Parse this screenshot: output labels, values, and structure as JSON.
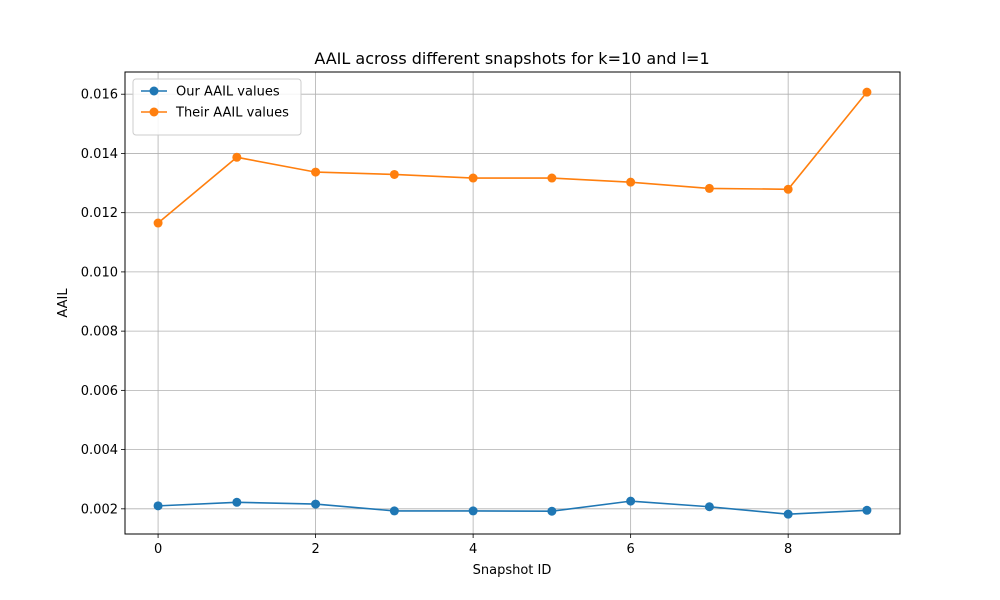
{
  "chart_data": {
    "type": "line",
    "title": "AAIL across different snapshots for k=10 and l=1",
    "xlabel": "Snapshot ID",
    "ylabel": "AAIL",
    "x": [
      0,
      1,
      2,
      3,
      4,
      5,
      6,
      7,
      8,
      9
    ],
    "xlim": [
      -0.42,
      9.42
    ],
    "ylim": [
      0.00115,
      0.01675
    ],
    "xticks": [
      0,
      2,
      4,
      6,
      8
    ],
    "xtick_labels": [
      "0",
      "2",
      "4",
      "6",
      "8"
    ],
    "yticks": [
      0.002,
      0.004,
      0.006,
      0.008,
      0.01,
      0.012,
      0.014,
      0.016
    ],
    "ytick_labels": [
      "0.002",
      "0.004",
      "0.006",
      "0.008",
      "0.010",
      "0.012",
      "0.014",
      "0.016"
    ],
    "grid": true,
    "legend_position": "upper-left",
    "series": [
      {
        "name": "Our AAIL values",
        "color": "#1f77b4",
        "values": [
          0.0021,
          0.00222,
          0.00216,
          0.00193,
          0.00193,
          0.00192,
          0.00226,
          0.00207,
          0.00182,
          0.00195
        ]
      },
      {
        "name": "Their AAIL values",
        "color": "#ff7f0e",
        "values": [
          0.01165,
          0.01387,
          0.01337,
          0.01329,
          0.01317,
          0.01317,
          0.01303,
          0.01282,
          0.01279,
          0.01607
        ]
      }
    ]
  }
}
